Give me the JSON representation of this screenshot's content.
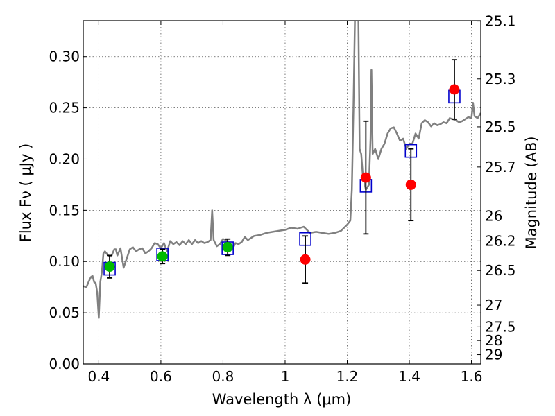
{
  "chart_data": {
    "type": "scatter",
    "title": "",
    "xlabel": "Wavelength  λ (μm)",
    "ylabel": "Flux  Fν  ( μJy )",
    "ylabel_right": "Magnitude (AB)",
    "xlim": [
      0.35,
      1.63
    ],
    "ylim": [
      0.0,
      0.335
    ],
    "grid": true,
    "x_ticks": [
      0.4,
      0.6,
      0.8,
      1.0,
      1.2,
      1.4,
      1.6
    ],
    "x_tick_labels": [
      "0.4",
      "0.6",
      "0.8",
      "1",
      "1.2",
      "1.4",
      "1.6"
    ],
    "y_ticks": [
      0.0,
      0.05,
      0.1,
      0.15,
      0.2,
      0.25,
      0.3
    ],
    "y_tick_labels": [
      "0.00",
      "0.05",
      "0.10",
      "0.15",
      "0.20",
      "0.25",
      "0.30"
    ],
    "right_ticks": [
      {
        "flux": 0.3346,
        "label": "25.1"
      },
      {
        "flux": 0.2783,
        "label": "25.3"
      },
      {
        "flux": 0.2315,
        "label": "25.5"
      },
      {
        "flux": 0.1923,
        "label": "25.7"
      },
      {
        "flux": 0.1445,
        "label": "26"
      },
      {
        "flux": 0.1202,
        "label": "26.2"
      },
      {
        "flux": 0.0912,
        "label": "26.5"
      },
      {
        "flux": 0.0575,
        "label": "27"
      },
      {
        "flux": 0.0363,
        "label": "27.5"
      },
      {
        "flux": 0.0229,
        "label": "28"
      },
      {
        "flux": 0.0091,
        "label": "29"
      }
    ],
    "colors": {
      "template": "#808080",
      "green_points": "#00bb00",
      "red_points": "#ff0000",
      "model_boxes": "#0000cc",
      "errorbar": "#000000",
      "grid": "#555555"
    },
    "series": [
      {
        "name": "template spectrum",
        "kind": "line",
        "x": [
          0.35,
          0.36,
          0.37,
          0.375,
          0.38,
          0.385,
          0.39,
          0.395,
          0.4,
          0.405,
          0.41,
          0.415,
          0.42,
          0.43,
          0.44,
          0.45,
          0.455,
          0.46,
          0.47,
          0.48,
          0.49,
          0.5,
          0.51,
          0.52,
          0.53,
          0.54,
          0.55,
          0.56,
          0.57,
          0.58,
          0.59,
          0.6,
          0.61,
          0.62,
          0.63,
          0.64,
          0.65,
          0.66,
          0.67,
          0.68,
          0.69,
          0.7,
          0.71,
          0.72,
          0.73,
          0.74,
          0.75,
          0.755,
          0.76,
          0.765,
          0.77,
          0.78,
          0.79,
          0.8,
          0.81,
          0.82,
          0.83,
          0.84,
          0.85,
          0.86,
          0.87,
          0.88,
          0.89,
          0.9,
          0.92,
          0.94,
          0.96,
          0.98,
          1.0,
          1.02,
          1.04,
          1.06,
          1.08,
          1.1,
          1.12,
          1.14,
          1.16,
          1.18,
          1.2,
          1.21,
          1.215,
          1.22,
          1.225,
          1.228,
          1.232,
          1.236,
          1.24,
          1.245,
          1.25,
          1.26,
          1.27,
          1.275,
          1.278,
          1.282,
          1.29,
          1.3,
          1.31,
          1.32,
          1.33,
          1.34,
          1.35,
          1.36,
          1.37,
          1.38,
          1.39,
          1.4,
          1.41,
          1.42,
          1.43,
          1.44,
          1.45,
          1.46,
          1.47,
          1.48,
          1.49,
          1.5,
          1.51,
          1.52,
          1.53,
          1.54,
          1.55,
          1.56,
          1.57,
          1.58,
          1.59,
          1.6,
          1.605,
          1.61,
          1.62,
          1.63
        ],
        "y": [
          0.076,
          0.075,
          0.082,
          0.085,
          0.086,
          0.08,
          0.079,
          0.07,
          0.045,
          0.08,
          0.09,
          0.108,
          0.11,
          0.106,
          0.105,
          0.112,
          0.112,
          0.106,
          0.113,
          0.094,
          0.103,
          0.112,
          0.114,
          0.11,
          0.112,
          0.113,
          0.108,
          0.11,
          0.113,
          0.118,
          0.117,
          0.113,
          0.118,
          0.11,
          0.12,
          0.117,
          0.119,
          0.116,
          0.12,
          0.117,
          0.121,
          0.117,
          0.121,
          0.118,
          0.12,
          0.118,
          0.119,
          0.12,
          0.121,
          0.15,
          0.121,
          0.115,
          0.117,
          0.122,
          0.121,
          0.114,
          0.112,
          0.118,
          0.117,
          0.119,
          0.124,
          0.121,
          0.123,
          0.125,
          0.126,
          0.128,
          0.129,
          0.13,
          0.131,
          0.133,
          0.132,
          0.134,
          0.128,
          0.129,
          0.128,
          0.127,
          0.128,
          0.13,
          0.136,
          0.14,
          0.17,
          0.25,
          0.34,
          0.34,
          0.34,
          0.34,
          0.21,
          0.205,
          0.185,
          0.17,
          0.175,
          0.22,
          0.287,
          0.205,
          0.21,
          0.2,
          0.21,
          0.215,
          0.225,
          0.23,
          0.231,
          0.225,
          0.218,
          0.22,
          0.21,
          0.215,
          0.215,
          0.225,
          0.22,
          0.235,
          0.238,
          0.236,
          0.232,
          0.235,
          0.233,
          0.234,
          0.236,
          0.235,
          0.24,
          0.239,
          0.238,
          0.236,
          0.237,
          0.239,
          0.241,
          0.24,
          0.255,
          0.242,
          0.24,
          0.245
        ]
      },
      {
        "name": "observed (green)",
        "kind": "points",
        "x": [
          0.435,
          0.605,
          0.815
        ],
        "y": [
          0.095,
          0.105,
          0.114
        ],
        "err": [
          0.011,
          0.007,
          0.008
        ]
      },
      {
        "name": "observed (red)",
        "kind": "points",
        "x": [
          1.065,
          1.26,
          1.405,
          1.545
        ],
        "y": [
          0.102,
          0.182,
          0.175,
          0.268
        ],
        "err": [
          0.023,
          0.055,
          0.035,
          0.029
        ]
      },
      {
        "name": "model (blue squares)",
        "kind": "boxes",
        "x": [
          0.435,
          0.605,
          0.815,
          1.065,
          1.26,
          1.405,
          1.545
        ],
        "y": [
          0.093,
          0.107,
          0.113,
          0.122,
          0.174,
          0.208,
          0.261
        ]
      }
    ]
  }
}
